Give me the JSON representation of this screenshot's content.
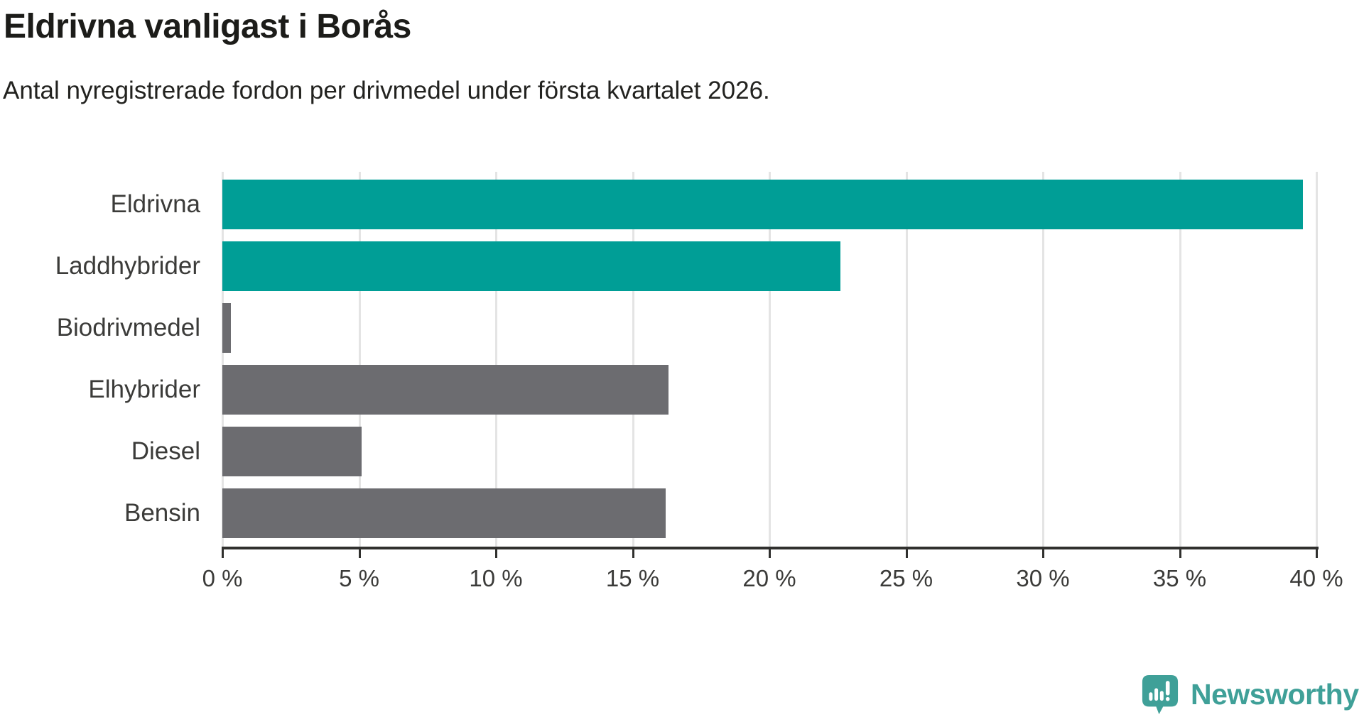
{
  "header": {
    "title": "Eldrivna vanligast i Borås",
    "subtitle": "Antal nyregistrerade fordon per drivmedel under första kvartalet 2026."
  },
  "chart_data": {
    "type": "bar",
    "orientation": "horizontal",
    "title": "Eldrivna vanligast i Borås",
    "subtitle": "Antal nyregistrerade fordon per drivmedel under första kvartalet 2026.",
    "categories": [
      "Eldrivna",
      "Laddhybrider",
      "Biodrivmedel",
      "Elhybrider",
      "Diesel",
      "Bensin"
    ],
    "values": [
      39.5,
      22.6,
      0.3,
      16.3,
      5.1,
      16.2
    ],
    "unit": "%",
    "bar_colors": [
      "#009e96",
      "#009e96",
      "#6c6c70",
      "#6c6c70",
      "#6c6c70",
      "#6c6c70"
    ],
    "highlight_color": "#009e96",
    "default_color": "#6c6c70",
    "xlabel": "",
    "ylabel": "",
    "xlim": [
      0,
      41.7
    ],
    "x_ticks": [
      0,
      5,
      10,
      15,
      20,
      25,
      30,
      35,
      40
    ],
    "x_tick_suffix": " %",
    "grid": "vertical-gridlines-on",
    "legend": "none"
  },
  "branding": {
    "logo_text": "Newsworthy",
    "logo_color": "#3fa098",
    "logo_icon": "newsworthy-pin-icon"
  }
}
